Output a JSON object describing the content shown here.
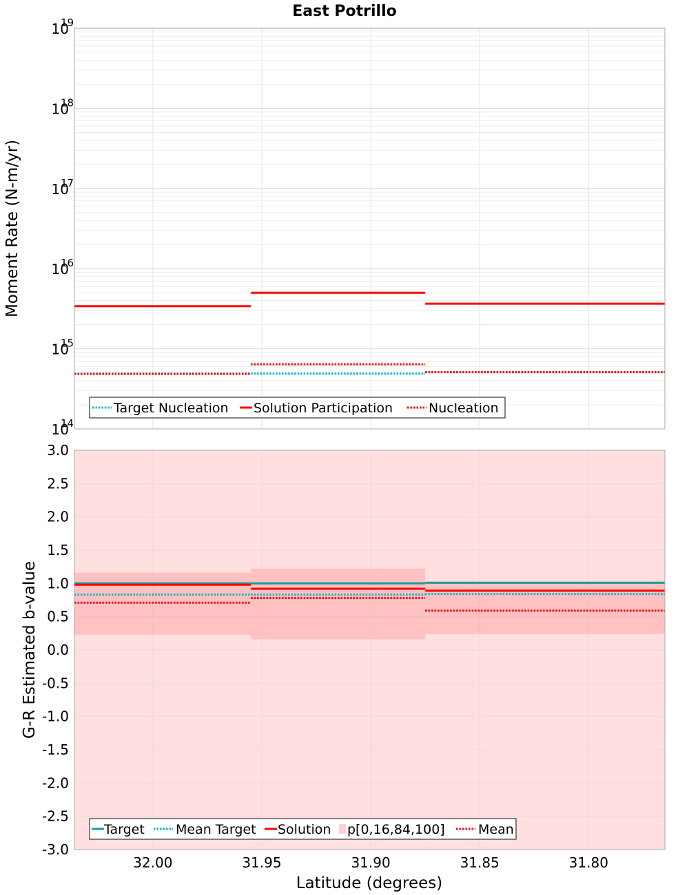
{
  "chart_data": [
    {
      "type": "line",
      "title": "East Potrillo",
      "xlabel": "",
      "ylabel": "Moment Rate (N-m/yr)",
      "yscale": "log",
      "ylim_exponents": [
        14,
        19
      ],
      "ytick_base": "10",
      "ytick_exponents": [
        "14",
        "15",
        "16",
        "17",
        "18",
        "19"
      ],
      "xlim": [
        32.036,
        31.765
      ],
      "xticks": [
        32.0,
        31.95,
        31.9,
        31.85,
        31.8
      ],
      "grid": true,
      "legend_position": "bottom-left",
      "segments": [
        {
          "from": 32.036,
          "to": 31.955
        },
        {
          "from": 31.955,
          "to": 31.875
        },
        {
          "from": 31.875,
          "to": 31.765
        }
      ],
      "series": [
        {
          "name": "Target Nucleation",
          "style": "dotted",
          "color": "#00b8c8",
          "values": [
            490000000000000.0,
            490000000000000.0,
            510000000000000.0
          ]
        },
        {
          "name": "Solution Participation",
          "style": "solid",
          "color": "#ff0000",
          "values": [
            3400000000000000.0,
            5000000000000000.0,
            3650000000000000.0
          ]
        },
        {
          "name": "Nucleation",
          "style": "dotted",
          "color": "#ff0000",
          "values": [
            485000000000000.0,
            640000000000000.0,
            510000000000000.0
          ]
        }
      ]
    },
    {
      "type": "line",
      "title": "",
      "xlabel": "Latitude (degrees)",
      "ylabel": "G-R Estimated b-value",
      "ylim": [
        -3.0,
        3.0
      ],
      "yticks": [
        "-3.0",
        "-2.5",
        "-2.0",
        "-1.5",
        "-1.0",
        "-0.5",
        "0.0",
        "0.5",
        "1.0",
        "1.5",
        "2.0",
        "2.5",
        "3.0"
      ],
      "xlim": [
        32.036,
        31.765
      ],
      "xticks": [
        "32.00",
        "31.95",
        "31.90",
        "31.85",
        "31.80"
      ],
      "grid": true,
      "legend_position": "bottom-left",
      "segments": [
        {
          "from": 32.036,
          "to": 31.955
        },
        {
          "from": 31.955,
          "to": 31.875
        },
        {
          "from": 31.875,
          "to": 31.765
        }
      ],
      "band_outer": {
        "name": "p[0,16,84,100]",
        "color": "#ffb0b0",
        "lower": [
          -3.0,
          -3.0,
          -3.0
        ],
        "upper": [
          3.0,
          3.0,
          3.0
        ]
      },
      "band_inner": {
        "color": "#ff9090",
        "lower": [
          0.23,
          0.16,
          0.24
        ],
        "upper": [
          1.16,
          1.22,
          1.01
        ]
      },
      "series": [
        {
          "name": "Target",
          "style": "solid",
          "color": "#1a9a9a",
          "values": [
            1.0,
            1.0,
            1.01
          ]
        },
        {
          "name": "Mean Target",
          "style": "dotted",
          "color": "#00b8c8",
          "values": [
            0.83,
            0.83,
            0.84
          ]
        },
        {
          "name": "Solution",
          "style": "solid",
          "color": "#ff0000",
          "values": [
            0.98,
            0.92,
            0.89
          ]
        },
        {
          "name": "Mean",
          "style": "dotted",
          "color": "#ff0000",
          "values": [
            0.71,
            0.78,
            0.59
          ]
        }
      ]
    }
  ]
}
